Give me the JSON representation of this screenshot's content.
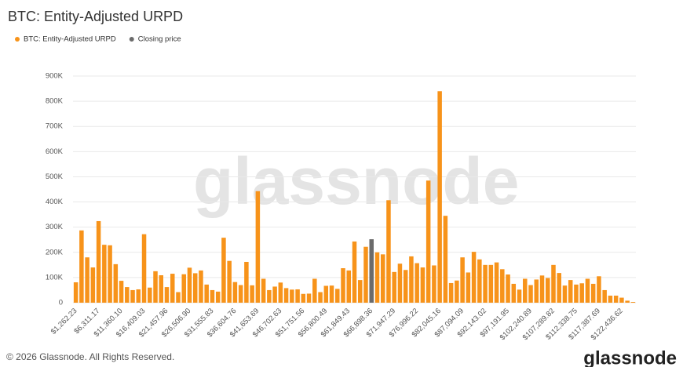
{
  "chart_data": {
    "type": "bar",
    "title": "BTC: Entity-Adjusted URPD",
    "categories": [
      "$1,262.23",
      null,
      null,
      null,
      "$6,311.17",
      null,
      null,
      null,
      "$11,360.10",
      null,
      null,
      null,
      "$16,409.03",
      null,
      null,
      null,
      "$21,457.96",
      null,
      null,
      null,
      "$26,506.90",
      null,
      null,
      null,
      "$31,555.83",
      null,
      null,
      null,
      "$36,604.76",
      null,
      null,
      null,
      "$41,653.69",
      null,
      null,
      null,
      "$46,702.63",
      null,
      null,
      null,
      "$51,751.56",
      null,
      null,
      null,
      "$56,800.49",
      null,
      null,
      null,
      "$61,849.43",
      null,
      null,
      null,
      "$66,898.36",
      null,
      null,
      null,
      "$71,947.29",
      null,
      null,
      null,
      "$76,996.22",
      null,
      null,
      null,
      "$82,045.16",
      null,
      null,
      null,
      "$87,094.09",
      null,
      null,
      null,
      "$92,143.02",
      null,
      null,
      null,
      "$97,191.95",
      null,
      null,
      null,
      "$102,240.89",
      null,
      null,
      null,
      "$107,289.82",
      null,
      null,
      null,
      "$112,338.75",
      null,
      null,
      null,
      "$117,387.69",
      null,
      null,
      null,
      "$122,436.62",
      null,
      null
    ],
    "series": [
      {
        "name": "BTC: Entity-Adjusted URPD",
        "color": "#f7931a",
        "values": [
          81000,
          287000,
          180000,
          140000,
          324000,
          230000,
          228000,
          153000,
          87000,
          62000,
          50000,
          53000,
          272000,
          60000,
          125000,
          109000,
          62000,
          115000,
          42000,
          113000,
          139000,
          117000,
          128000,
          72000,
          50000,
          44000,
          258000,
          166000,
          82000,
          70000,
          162000,
          69000,
          443000,
          95000,
          50000,
          64000,
          80000,
          58000,
          52000,
          53000,
          35000,
          36000,
          95000,
          42000,
          67000,
          68000,
          55000,
          137000,
          128000,
          243000,
          90000,
          222000,
          null,
          200000,
          192000,
          407000,
          122000,
          155000,
          130000,
          184000,
          157000,
          140000,
          485000,
          148000,
          840000,
          345000,
          78000,
          88000,
          180000,
          120000,
          202000,
          172000,
          150000,
          150000,
          160000,
          133000,
          112000,
          75000,
          52000,
          95000,
          70000,
          92000,
          108000,
          98000,
          150000,
          118000,
          68000,
          90000,
          72000,
          77000,
          95000,
          75000,
          105000,
          50000,
          28000,
          28000,
          20000,
          8000,
          3000
        ]
      },
      {
        "name": "Closing price",
        "color": "#6b6b6b",
        "values": [
          null,
          null,
          null,
          null,
          null,
          null,
          null,
          null,
          null,
          null,
          null,
          null,
          null,
          null,
          null,
          null,
          null,
          null,
          null,
          null,
          null,
          null,
          null,
          null,
          null,
          null,
          null,
          null,
          null,
          null,
          null,
          null,
          null,
          null,
          null,
          null,
          null,
          null,
          null,
          null,
          null,
          null,
          null,
          null,
          null,
          null,
          null,
          null,
          null,
          null,
          null,
          null,
          252000,
          null,
          null,
          null,
          null,
          null,
          null,
          null,
          null,
          null,
          null,
          null,
          null,
          null,
          null,
          null,
          null,
          null,
          null,
          null,
          null,
          null,
          null,
          null,
          null,
          null,
          null,
          null,
          null,
          null,
          null,
          null,
          null,
          null,
          null,
          null,
          null,
          null,
          null,
          null,
          null,
          null,
          null,
          null,
          null,
          null,
          null
        ]
      }
    ],
    "ylim": [
      0,
      900000
    ],
    "yticks": [
      0,
      {
        "value": 100000,
        "label": "100K"
      },
      {
        "value": 200000,
        "label": "200K"
      },
      {
        "value": 300000,
        "label": "300K"
      },
      {
        "value": 400000,
        "label": "400K"
      },
      {
        "value": 500000,
        "label": "500K"
      },
      {
        "value": 600000,
        "label": "600K"
      },
      {
        "value": 700000,
        "label": "700K"
      },
      {
        "value": 800000,
        "label": "800K"
      },
      {
        "value": 900000,
        "label": "900K"
      }
    ],
    "grid": true
  },
  "watermark": "glassnode",
  "footer": {
    "copyright": "© 2026 Glassnode. All Rights Reserved.",
    "logo": "glassnode"
  }
}
